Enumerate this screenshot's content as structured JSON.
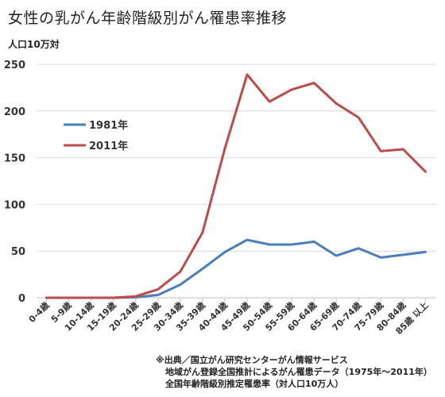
{
  "title": "女性の乳がん年齢階級別がん罹患率推移",
  "y_unit_label": "人口10万対",
  "colors": {
    "s1981": "#4a7ebb",
    "s2011": "#be4b48",
    "grid": "#d9d9d9",
    "axis": "#bfbfbf"
  },
  "notes": {
    "line1": "※出典／国立がん研究センターがん情報サービス",
    "line2": "地域がん登録全国推計によるがん罹患データ（1975年～2011年）",
    "line3": "全国年齢階級別推定罹患率（対人口10万人）"
  },
  "chart_data": {
    "type": "line",
    "title": "女性の乳がん年齢階級別がん罹患率推移",
    "xlabel": "",
    "ylabel": "人口10万対",
    "ylim": [
      0,
      250
    ],
    "yticks": [
      0,
      50,
      100,
      150,
      200,
      250
    ],
    "grid": true,
    "legend_position": "left",
    "categories": [
      "0-4歳",
      "5-9歳",
      "10-14歳",
      "15-19歳",
      "20-24歳",
      "25-29歳",
      "30-34歳",
      "35-39歳",
      "40-44歳",
      "45-49歳",
      "50-54歳",
      "55-59歳",
      "60-64歳",
      "65-69歳",
      "70-74歳",
      "75-79歳",
      "80-84歳",
      "85歳 以上"
    ],
    "series": [
      {
        "name": "1981年",
        "values": [
          0,
          0,
          0,
          0,
          0.5,
          3,
          14,
          31,
          49,
          62,
          57,
          57,
          60,
          45,
          53,
          43,
          46,
          49
        ]
      },
      {
        "name": "2011年",
        "values": [
          0,
          0,
          0,
          0,
          1.5,
          9,
          28,
          70,
          160,
          239,
          210,
          223,
          230,
          208,
          193,
          157,
          159,
          135
        ]
      }
    ]
  }
}
